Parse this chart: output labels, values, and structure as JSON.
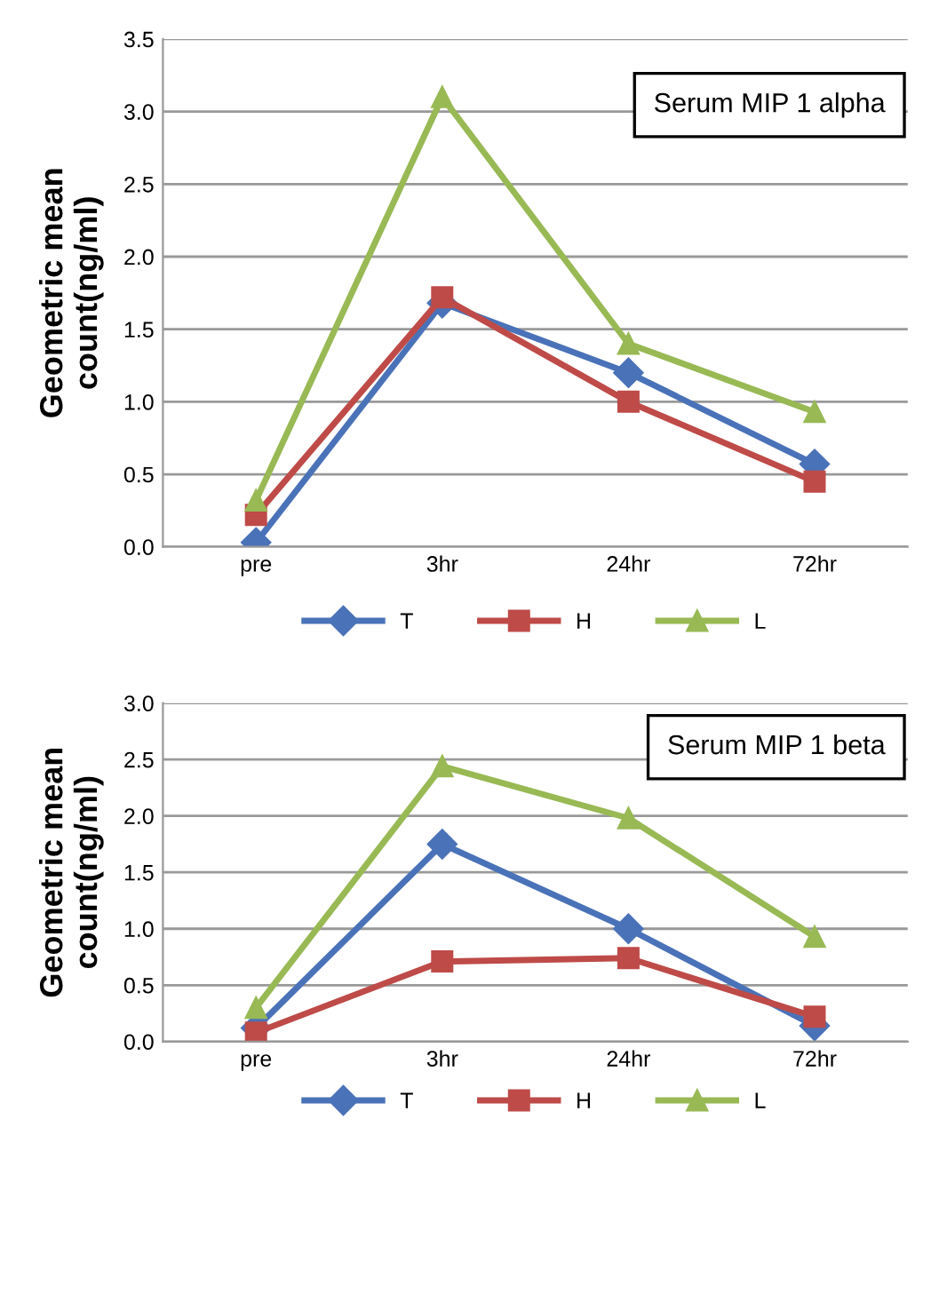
{
  "chart_data": [
    {
      "type": "line",
      "title": "Serum MIP 1 alpha",
      "ylabel": "Geometric mean\ncount(ng/ml)",
      "categories": [
        "pre",
        "3hr",
        "24hr",
        "72hr"
      ],
      "series": [
        {
          "name": "T",
          "color": "#4a72b8",
          "marker": "diamond",
          "values": [
            0.03,
            1.68,
            1.2,
            0.57
          ]
        },
        {
          "name": "H",
          "color": "#be4b48",
          "marker": "square",
          "values": [
            0.22,
            1.72,
            1.0,
            0.45
          ]
        },
        {
          "name": "L",
          "color": "#98b954",
          "marker": "triangle",
          "values": [
            0.32,
            3.1,
            1.4,
            0.93
          ]
        }
      ],
      "ylim": [
        0,
        3.5
      ],
      "yticks": [
        {
          "value": 0,
          "label": "0.0"
        },
        0.5,
        {
          "value": 1,
          "label": "1.0"
        },
        1.5,
        {
          "value": 2,
          "label": "2.0"
        },
        2.5,
        {
          "value": 3,
          "label": "3.0"
        },
        3.5
      ],
      "grid": "y",
      "legend": "bottom"
    },
    {
      "type": "line",
      "title": "Serum MIP 1 beta",
      "ylabel": "Geometric mean\ncount(ng/ml)",
      "categories": [
        "pre",
        "3hr",
        "24hr",
        "72hr"
      ],
      "series": [
        {
          "name": "T",
          "color": "#4a72b8",
          "marker": "diamond",
          "values": [
            0.12,
            1.75,
            1.0,
            0.14
          ]
        },
        {
          "name": "H",
          "color": "#be4b48",
          "marker": "square",
          "values": [
            0.08,
            0.71,
            0.74,
            0.22
          ]
        },
        {
          "name": "L",
          "color": "#98b954",
          "marker": "triangle",
          "values": [
            0.3,
            2.44,
            1.98,
            0.93
          ]
        }
      ],
      "ylim": [
        0,
        3.0
      ],
      "yticks": [
        {
          "value": 0,
          "label": "0.0"
        },
        0.5,
        {
          "value": 1,
          "label": "1.0"
        },
        1.5,
        {
          "value": 2,
          "label": "2.0"
        },
        2.5,
        {
          "value": 3,
          "label": "3.0"
        }
      ],
      "grid": "y",
      "legend": "bottom"
    }
  ]
}
